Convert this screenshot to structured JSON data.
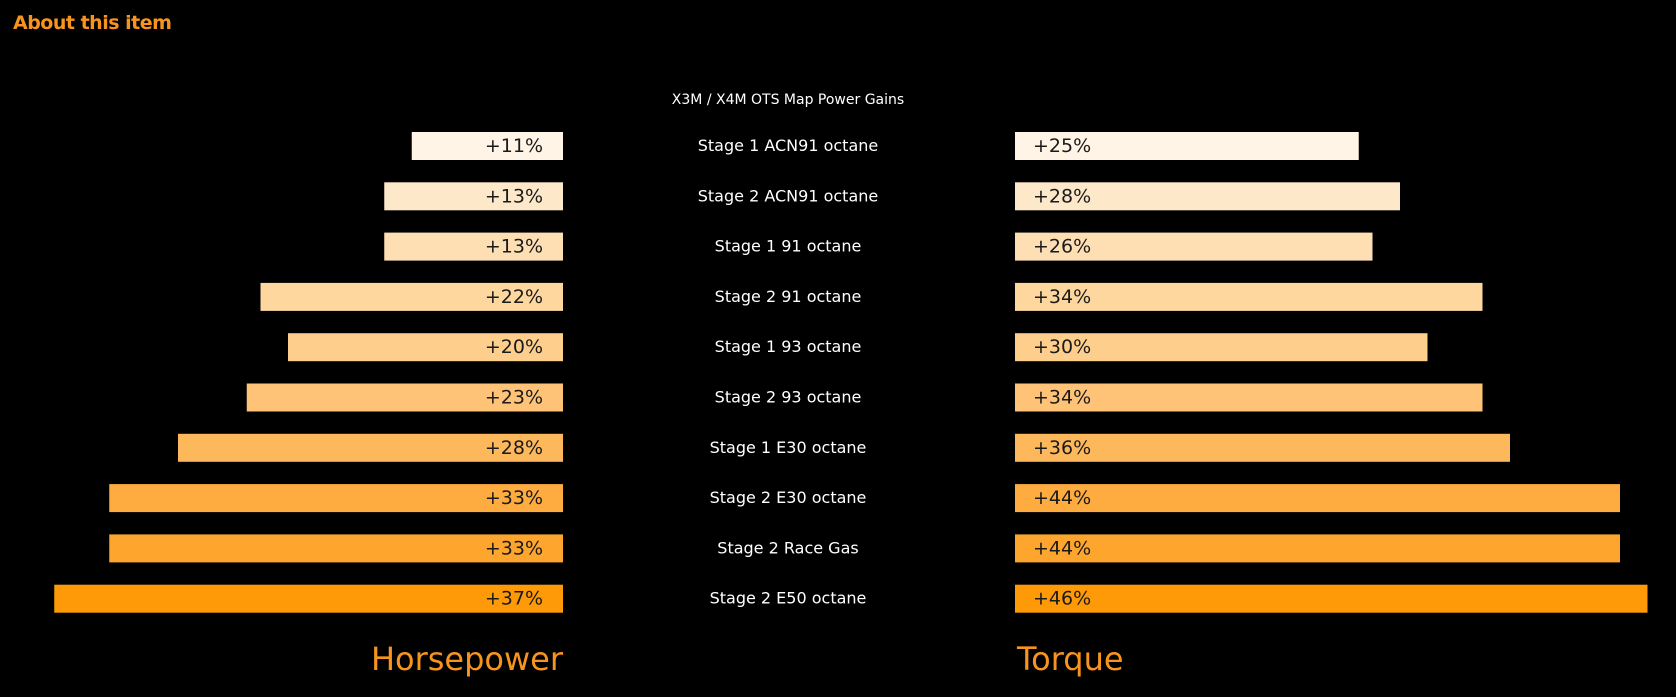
{
  "header": {
    "title": "About this item"
  },
  "colors": {
    "background": "#000000",
    "heading": "#f7941d",
    "text": "#ffffff",
    "bar_label": "#1a1a1a",
    "scale": [
      "#fff4e6",
      "#fee8ca",
      "#fedfb4",
      "#fed79f",
      "#fecf8c",
      "#fec377",
      "#feb85c",
      "#feac40",
      "#fea52e",
      "#fe9a08"
    ]
  },
  "chart_data": {
    "type": "bar",
    "orientation": "horizontal-butterfly",
    "title": "X3M / X4M OTS Map Power Gains",
    "categories": [
      "Stage 1 ACN91 octane",
      "Stage 2 ACN91 octane",
      "Stage 1 91 octane",
      "Stage 2 91 octane",
      "Stage 1 93 octane",
      "Stage 2 93 octane",
      "Stage 1 E30 octane",
      "Stage 2 E30 octane",
      "Stage 2 Race Gas",
      "Stage 2 E50 octane"
    ],
    "series": [
      {
        "name": "Horsepower",
        "side": "left",
        "values": [
          11,
          13,
          13,
          22,
          20,
          23,
          28,
          33,
          33,
          37
        ],
        "labels": [
          "+11%",
          "+13%",
          "+13%",
          "+22%",
          "+20%",
          "+23%",
          "+28%",
          "+33%",
          "+33%",
          "+37%"
        ]
      },
      {
        "name": "Torque",
        "side": "right",
        "values": [
          25,
          28,
          26,
          34,
          30,
          34,
          36,
          44,
          44,
          46
        ],
        "labels": [
          "+25%",
          "+28%",
          "+26%",
          "+34%",
          "+30%",
          "+34%",
          "+36%",
          "+44%",
          "+44%",
          "+46%"
        ]
      }
    ],
    "unit": "%",
    "grid": false,
    "legend": "none"
  }
}
